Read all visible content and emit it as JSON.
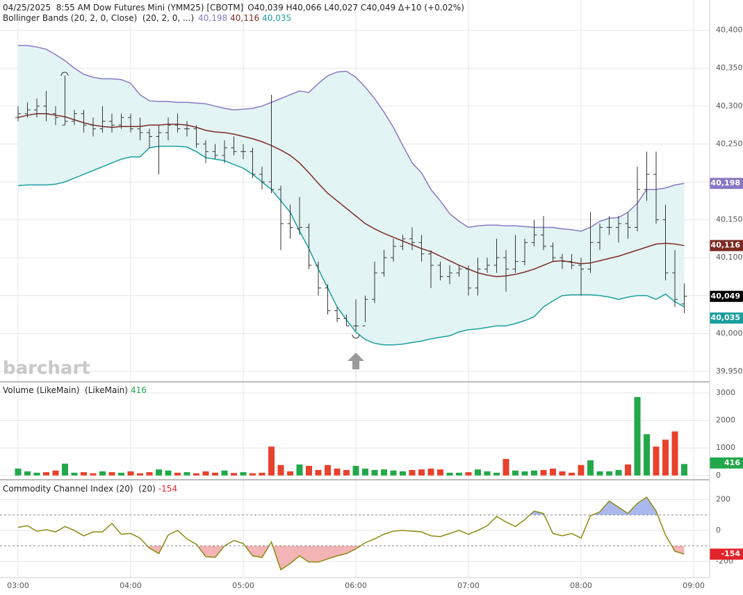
{
  "chart_data": [
    {
      "type": "ohlc",
      "title": "04/25/2025  8:55 AM Dow Futures Mini (YMM25) [CBOTM]",
      "quote": "O40,039 H40,066 L40,027 C40,049 Δ+10 (+0.02%)",
      "study": "Bollinger Bands (20, 2, 0, Close)  (20, 2, 0, ...)",
      "watermark": "barchart",
      "color": "#333333",
      "close_label": "40,049",
      "open": [
        40285,
        40290,
        40295,
        40300,
        40290,
        40275,
        40280,
        40290,
        40275,
        40270,
        40280,
        40275,
        40285,
        40270,
        40265,
        40260,
        40265,
        40275,
        40270,
        40270,
        40250,
        40240,
        40235,
        40245,
        40240,
        40240,
        40210,
        40200,
        40190,
        40145,
        40138,
        40140,
        40090,
        40060,
        40030,
        40020,
        40010,
        40010,
        40045,
        40080,
        40100,
        40115,
        40125,
        40120,
        40105,
        40090,
        40075,
        40080,
        40085,
        40060,
        40085,
        40090,
        40100,
        40085,
        40095,
        40120,
        40130,
        40115,
        40100,
        40095,
        40090,
        40085,
        40120,
        40140,
        40140,
        40145,
        40140,
        40190,
        40210,
        40150,
        40080,
        40039
      ],
      "high": [
        40300,
        40305,
        40310,
        40320,
        40300,
        40340,
        40295,
        40295,
        40285,
        40300,
        40290,
        40290,
        40290,
        40285,
        40270,
        40275,
        40285,
        40290,
        40280,
        40275,
        40255,
        40250,
        40255,
        40260,
        40250,
        40245,
        40220,
        40315,
        40195,
        40170,
        40180,
        40145,
        40095,
        40065,
        40035,
        40025,
        40045,
        40050,
        40095,
        40110,
        40125,
        40130,
        40140,
        40130,
        40110,
        40095,
        40090,
        40090,
        40090,
        40100,
        40100,
        40125,
        40110,
        40130,
        40125,
        40150,
        40155,
        40120,
        40105,
        40105,
        40100,
        40160,
        40145,
        40155,
        40155,
        40160,
        40220,
        40240,
        40240,
        40170,
        40110,
        40066
      ],
      "low": [
        40280,
        40285,
        40285,
        40280,
        40275,
        40275,
        40275,
        40265,
        40260,
        40265,
        40265,
        40270,
        40265,
        40255,
        40245,
        40210,
        40255,
        40265,
        40260,
        40245,
        40225,
        40230,
        40225,
        40235,
        40230,
        40205,
        40190,
        40185,
        40110,
        40125,
        40130,
        40085,
        40050,
        40025,
        40015,
        40010,
        40003,
        40015,
        40040,
        40075,
        40095,
        40110,
        40110,
        40095,
        40060,
        40070,
        40065,
        40075,
        40050,
        40050,
        40080,
        40080,
        40055,
        40080,
        40090,
        40115,
        40110,
        40095,
        40085,
        40085,
        40050,
        40080,
        40110,
        40130,
        40120,
        40125,
        40135,
        40175,
        40145,
        40070,
        40035,
        40027
      ],
      "close": [
        40290,
        40295,
        40300,
        40290,
        40285,
        40280,
        40290,
        40275,
        40270,
        40280,
        40275,
        40285,
        40270,
        40265,
        40260,
        40265,
        40275,
        40270,
        40270,
        40250,
        40240,
        40235,
        40245,
        40240,
        40240,
        40210,
        40200,
        40190,
        40145,
        40140,
        40140,
        40090,
        40060,
        40030,
        40020,
        40010,
        40010,
        40045,
        40080,
        40100,
        40115,
        40125,
        40120,
        40105,
        40090,
        40075,
        40080,
        40085,
        40060,
        40085,
        40090,
        40100,
        40085,
        40095,
        40120,
        40130,
        40115,
        40100,
        40095,
        40090,
        40085,
        40120,
        40140,
        40140,
        40145,
        40140,
        40190,
        40210,
        40150,
        40080,
        40045,
        40049
      ],
      "band_fill": "#e3f4f4",
      "bands": [
        {
          "color": "#8878c3",
          "value_label": "40,198",
          "values": [
            40380,
            40380,
            40378,
            40375,
            40368,
            40360,
            40350,
            40342,
            40338,
            40336,
            40336,
            40335,
            40330,
            40315,
            40307,
            40306,
            40306,
            40305,
            40305,
            40304,
            40303,
            40300,
            40297,
            40295,
            40296,
            40297,
            40300,
            40305,
            40310,
            40315,
            40320,
            40318,
            40330,
            40340,
            40345,
            40346,
            40338,
            40325,
            40310,
            40292,
            40272,
            40248,
            40225,
            40212,
            40190,
            40175,
            40158,
            40148,
            40140,
            40142,
            40143,
            40143,
            40142,
            40142,
            40141,
            40140,
            40140,
            40140,
            40138,
            40137,
            40135,
            40140,
            40148,
            40152,
            40153,
            40160,
            40172,
            40190,
            40190,
            40192,
            40196,
            40198
          ]
        },
        {
          "color": "#7a2a22",
          "value_label": "40,116",
          "values": [
            40285,
            40288,
            40290,
            40290,
            40288,
            40286,
            40282,
            40278,
            40275,
            40273,
            40272,
            40273,
            40273,
            40273,
            40275,
            40275,
            40276,
            40276,
            40275,
            40272,
            40268,
            40266,
            40265,
            40263,
            40260,
            40257,
            40253,
            40248,
            40242,
            40235,
            40225,
            40212,
            40198,
            40185,
            40175,
            40165,
            40155,
            40145,
            40138,
            40132,
            40127,
            40122,
            40117,
            40112,
            40108,
            40102,
            40096,
            40090,
            40085,
            40080,
            40077,
            40075,
            40076,
            40078,
            40081,
            40085,
            40090,
            40095,
            40096,
            40094,
            40092,
            40093,
            40096,
            40099,
            40102,
            40106,
            40110,
            40114,
            40118,
            40119,
            40118,
            40116
          ]
        },
        {
          "color": "#1a9e9e",
          "value_label": "40,035",
          "values": [
            40195,
            40196,
            40196,
            40196,
            40197,
            40200,
            40205,
            40210,
            40215,
            40220,
            40225,
            40230,
            40233,
            40233,
            40245,
            40247,
            40247,
            40247,
            40246,
            40240,
            40232,
            40230,
            40228,
            40223,
            40218,
            40210,
            40200,
            40190,
            40175,
            40160,
            40135,
            40112,
            40085,
            40060,
            40035,
            40018,
            40002,
            39992,
            39987,
            39985,
            39985,
            39986,
            39988,
            39990,
            39993,
            39995,
            39997,
            40002,
            40005,
            40006,
            40008,
            40010,
            40010,
            40013,
            40017,
            40022,
            40035,
            40043,
            40050,
            40051,
            40051,
            40051,
            40050,
            40048,
            40045,
            40048,
            40050,
            40050,
            40045,
            40052,
            40042,
            40035
          ]
        }
      ],
      "ylim": [
        39938,
        40440
      ],
      "yticks": [
        {
          "value": 39950,
          "label": "39,950"
        },
        {
          "value": 40000,
          "label": "40,000"
        },
        {
          "value": 40050,
          "label": "40,050"
        },
        {
          "value": 40100,
          "label": "40,100"
        },
        {
          "value": 40150,
          "label": "40,150"
        },
        {
          "value": 40200,
          "label": "40,200"
        },
        {
          "value": 40250,
          "label": "40,250"
        },
        {
          "value": 40300,
          "label": "40,300"
        },
        {
          "value": 40350,
          "label": "40,350"
        },
        {
          "value": 40400,
          "label": "40,400"
        }
      ],
      "grid": true
    },
    {
      "type": "bar",
      "title": "Volume (LikeMain)  (LikeMain)",
      "up_color": "#22a84a",
      "down_color": "#e8412c",
      "values": [
        250,
        150,
        100,
        120,
        180,
        430,
        100,
        120,
        80,
        150,
        120,
        100,
        150,
        80,
        120,
        220,
        180,
        100,
        120,
        80,
        150,
        100,
        180,
        90,
        120,
        80,
        100,
        1050,
        380,
        150,
        400,
        350,
        200,
        380,
        250,
        200,
        350,
        250,
        200,
        220,
        180,
        150,
        200,
        220,
        250,
        220,
        100,
        100,
        120,
        220,
        150,
        100,
        600,
        180,
        150,
        180,
        200,
        250,
        150,
        100,
        380,
        550,
        150,
        150,
        200,
        400,
        2850,
        1500,
        1050,
        1300,
        1600,
        416
      ],
      "ylim": [
        -130,
        3350
      ],
      "yticks": [
        0,
        1000,
        2000,
        3000
      ],
      "grid": true
    },
    {
      "type": "line",
      "title": "Commodity Channel Index (20)  (20)",
      "color": "#8a8a10",
      "above_fill": "#aab8ee",
      "below_fill": "#f2b4b4",
      "badge_color": "#e0242a",
      "values": [
        20,
        30,
        -5,
        5,
        -10,
        25,
        0,
        -35,
        -10,
        -10,
        45,
        -25,
        -20,
        -50,
        -115,
        -150,
        -30,
        0,
        -55,
        -90,
        -170,
        -175,
        -100,
        -65,
        -85,
        -165,
        -175,
        -75,
        -255,
        -215,
        -165,
        -205,
        -205,
        -185,
        -165,
        -150,
        -120,
        -80,
        -55,
        -25,
        -5,
        0,
        -5,
        -10,
        -35,
        -40,
        -20,
        0,
        -25,
        0,
        30,
        90,
        55,
        25,
        70,
        125,
        110,
        -20,
        -35,
        -20,
        -50,
        95,
        120,
        190,
        150,
        110,
        175,
        215,
        125,
        -30,
        -135,
        -154
      ],
      "levels": [
        100,
        -100
      ],
      "ylim": [
        -297,
        319
      ],
      "yticks": [
        200,
        0,
        -200
      ],
      "xticks": [
        "03:00",
        "04:00",
        "05:00",
        "06:00",
        "07:00",
        "08:00",
        "09:00"
      ],
      "grid": true
    }
  ]
}
